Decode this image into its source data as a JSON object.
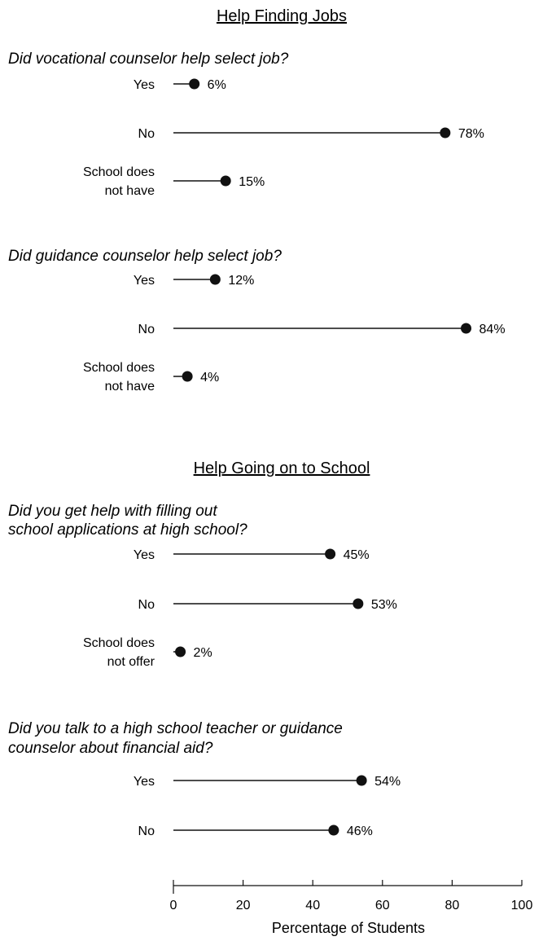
{
  "chart_data": {
    "type": "dot",
    "xlabel": "Percentage of Students",
    "xlim": [
      0,
      100
    ],
    "xticks": [
      "0",
      "20",
      "40",
      "60",
      "80",
      "100"
    ],
    "sections": [
      {
        "title": "Help Finding Jobs",
        "questions": [
          {
            "lines": [
              "Did vocational counselor help select job?"
            ],
            "items": [
              {
                "label": [
                  "Yes"
                ],
                "value": 6,
                "text": "6%"
              },
              {
                "label": [
                  "No"
                ],
                "value": 78,
                "text": "78%"
              },
              {
                "label": [
                  "School does",
                  "not have"
                ],
                "value": 15,
                "text": "15%"
              }
            ]
          },
          {
            "lines": [
              "Did guidance counselor help select job?"
            ],
            "items": [
              {
                "label": [
                  "Yes"
                ],
                "value": 12,
                "text": "12%"
              },
              {
                "label": [
                  "No"
                ],
                "value": 84,
                "text": "84%"
              },
              {
                "label": [
                  "School does",
                  "not have"
                ],
                "value": 4,
                "text": "4%"
              }
            ]
          }
        ]
      },
      {
        "title": "Help Going on to School",
        "questions": [
          {
            "lines": [
              "Did you get help with filling out",
              "school applications at high school?"
            ],
            "items": [
              {
                "label": [
                  "Yes"
                ],
                "value": 45,
                "text": "45%"
              },
              {
                "label": [
                  "No"
                ],
                "value": 53,
                "text": "53%"
              },
              {
                "label": [
                  "School does",
                  "not offer"
                ],
                "value": 2,
                "text": "2%"
              }
            ]
          },
          {
            "lines": [
              "Did you talk to a high school teacher or guidance",
              "counselor about financial aid?"
            ],
            "items": [
              {
                "label": [
                  "Yes"
                ],
                "value": 54,
                "text": "54%"
              },
              {
                "label": [
                  "No"
                ],
                "value": 46,
                "text": "46%"
              }
            ]
          }
        ]
      }
    ]
  }
}
